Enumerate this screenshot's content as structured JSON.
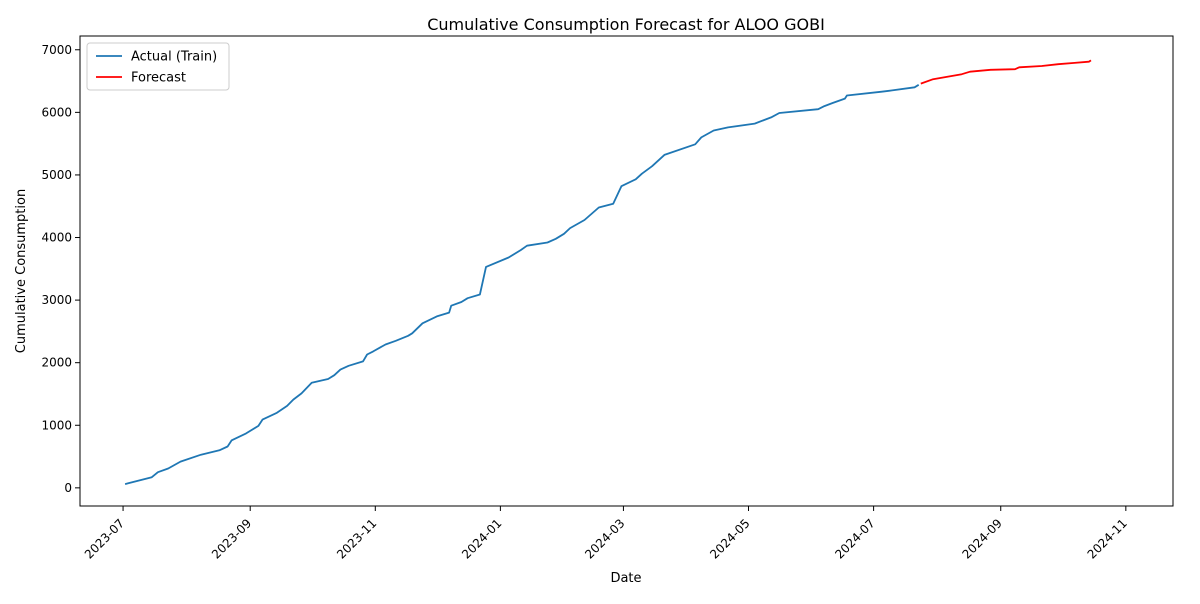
{
  "chart_data": {
    "type": "line",
    "title": "Cumulative Consumption Forecast for ALOO GOBI",
    "xlabel": "Date",
    "ylabel": "Cumulative Consumption",
    "x_ticks": [
      "2023-07",
      "2023-09",
      "2023-11",
      "2024-01",
      "2024-03",
      "2024-05",
      "2024-07",
      "2024-09",
      "2024-11"
    ],
    "y_ticks": [
      0,
      1000,
      2000,
      3000,
      4000,
      5000,
      6000,
      7000
    ],
    "xlim": [
      "2023-06-10",
      "2024-11-24"
    ],
    "ylim": [
      -290,
      7220
    ],
    "grid": false,
    "legend": "top-left",
    "colors": {
      "actual": "#1f77b4",
      "forecast": "#ff0000"
    },
    "series": [
      {
        "name": "Actual (Train)",
        "color": "#1f77b4",
        "x": [
          "2023-07-02",
          "2023-07-15",
          "2023-07-18",
          "2023-07-23",
          "2023-07-29",
          "2023-08-08",
          "2023-08-17",
          "2023-08-21",
          "2023-08-23",
          "2023-08-30",
          "2023-09-05",
          "2023-09-07",
          "2023-09-14",
          "2023-09-19",
          "2023-09-22",
          "2023-09-26",
          "2023-10-01",
          "2023-10-09",
          "2023-10-12",
          "2023-10-15",
          "2023-10-19",
          "2023-10-26",
          "2023-10-28",
          "2023-10-31",
          "2023-11-06",
          "2023-11-11",
          "2023-11-17",
          "2023-11-19",
          "2023-11-24",
          "2023-12-01",
          "2023-12-07",
          "2023-12-08",
          "2023-12-13",
          "2023-12-16",
          "2023-12-22",
          "2023-12-25",
          "2024-01-05",
          "2024-01-11",
          "2024-01-14",
          "2024-01-24",
          "2024-01-28",
          "2024-02-01",
          "2024-02-04",
          "2024-02-11",
          "2024-02-18",
          "2024-02-25",
          "2024-02-29",
          "2024-03-07",
          "2024-03-10",
          "2024-03-15",
          "2024-03-21",
          "2024-04-05",
          "2024-04-08",
          "2024-04-14",
          "2024-04-21",
          "2024-05-04",
          "2024-05-08",
          "2024-05-12",
          "2024-05-16",
          "2024-06-04",
          "2024-06-07",
          "2024-06-11",
          "2024-06-17",
          "2024-06-18",
          "2024-07-05",
          "2024-07-10",
          "2024-07-21",
          "2024-07-23"
        ],
        "y": [
          60,
          170,
          250,
          310,
          420,
          530,
          600,
          660,
          760,
          870,
          990,
          1090,
          1200,
          1310,
          1410,
          1510,
          1680,
          1740,
          1800,
          1890,
          1950,
          2020,
          2130,
          2180,
          2290,
          2350,
          2430,
          2470,
          2630,
          2740,
          2800,
          2910,
          2970,
          3030,
          3090,
          3530,
          3680,
          3800,
          3870,
          3920,
          3980,
          4060,
          4150,
          4280,
          4480,
          4540,
          4820,
          4930,
          5020,
          5140,
          5320,
          5490,
          5600,
          5710,
          5760,
          5820,
          5870,
          5920,
          5990,
          6050,
          6100,
          6150,
          6220,
          6270,
          6330,
          6350,
          6400,
          6440
        ]
      },
      {
        "name": "Forecast",
        "color": "#ff0000",
        "x": [
          "2024-07-24",
          "2024-07-30",
          "2024-08-06",
          "2024-08-13",
          "2024-08-17",
          "2024-08-27",
          "2024-09-08",
          "2024-09-10",
          "2024-09-21",
          "2024-09-29",
          "2024-10-07",
          "2024-10-14",
          "2024-10-15"
        ],
        "y": [
          6460,
          6530,
          6570,
          6610,
          6650,
          6680,
          6690,
          6720,
          6740,
          6770,
          6790,
          6810,
          6830
        ]
      }
    ]
  }
}
